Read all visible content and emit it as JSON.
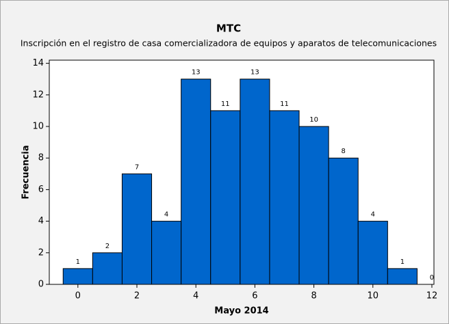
{
  "chart_data": {
    "type": "histogram",
    "title": "MTC",
    "subtitle": "Inscripción en el registro de casa comercializadora de equipos y aparatos de telecomunicaciones",
    "xlabel": "Mayo 2014",
    "ylabel": "Frecuencia",
    "bins": [
      -0.5,
      0.5,
      1.5,
      2.5,
      3.5,
      4.5,
      5.5,
      6.5,
      7.5,
      8.5,
      9.5,
      10.5,
      11.5,
      12.5
    ],
    "values": [
      1,
      2,
      7,
      4,
      13,
      11,
      13,
      11,
      10,
      8,
      4,
      1,
      0
    ],
    "color": "#0066cc",
    "xlim": [
      -0.97,
      12.07
    ],
    "xticks": [
      0,
      2,
      4,
      6,
      8,
      10,
      12
    ],
    "ylim": [
      0,
      14.2
    ],
    "yticks": [
      0,
      2,
      4,
      6,
      8,
      10,
      12,
      14
    ]
  }
}
